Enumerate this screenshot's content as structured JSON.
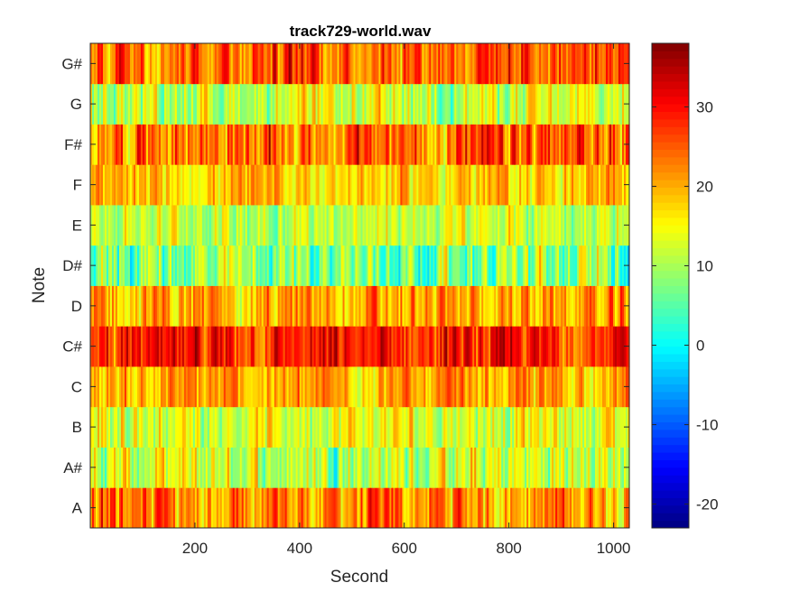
{
  "chart_data": {
    "type": "heatmap",
    "title": "track729-world.wav",
    "xlabel": "Second",
    "ylabel": "Note",
    "xlim": [
      0,
      1030
    ],
    "x_ticks": [
      "200",
      "400",
      "600",
      "800",
      "1000"
    ],
    "y_categories": [
      "A",
      "A#",
      "B",
      "C",
      "C#",
      "D",
      "D#",
      "E",
      "F",
      "F#",
      "G",
      "G#"
    ],
    "colorbar": {
      "colormap": "jet",
      "range": [
        -23,
        38
      ],
      "ticks": [
        "-20",
        "-10",
        "0",
        "10",
        "20",
        "30"
      ]
    },
    "row_value_summary": [
      {
        "note": "A",
        "typical": 22,
        "spread": 9
      },
      {
        "note": "A#",
        "typical": 12,
        "spread": 9
      },
      {
        "note": "B",
        "typical": 14,
        "spread": 8
      },
      {
        "note": "C",
        "typical": 20,
        "spread": 7
      },
      {
        "note": "C#",
        "typical": 28,
        "spread": 8
      },
      {
        "note": "D",
        "typical": 20,
        "spread": 8
      },
      {
        "note": "D#",
        "typical": 8,
        "spread": 10
      },
      {
        "note": "E",
        "typical": 12,
        "spread": 7
      },
      {
        "note": "F",
        "typical": 18,
        "spread": 7
      },
      {
        "note": "F#",
        "typical": 24,
        "spread": 10
      },
      {
        "note": "G",
        "typical": 12,
        "spread": 8
      },
      {
        "note": "G#",
        "typical": 26,
        "spread": 9
      }
    ]
  }
}
